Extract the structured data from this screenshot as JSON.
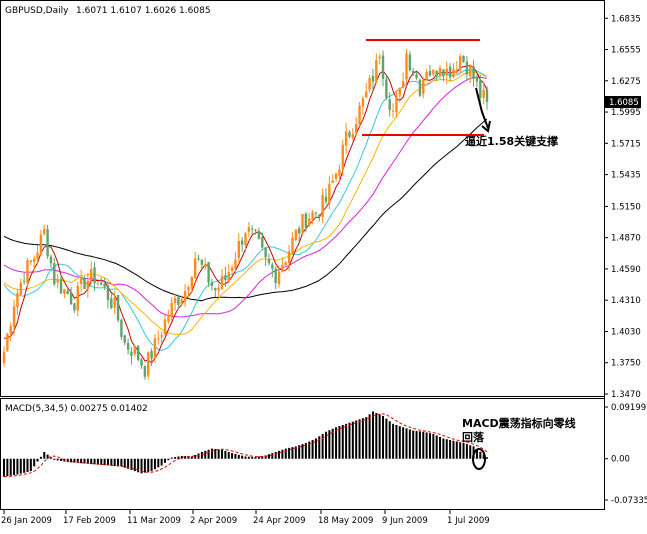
{
  "header": {
    "symbol_label": "GBPUSD,Daily",
    "ohlc_label": "1.6071 1.6107 1.6026 1.6085"
  },
  "colors": {
    "candle_up": "#ff8c1a",
    "candle_down": "#5fa36a",
    "ma_fast": "#cc0000",
    "ma_orange": "#ffb400",
    "ma_cyan": "#34c8e0",
    "ma_magenta": "#dd20dd",
    "ma_black": "#000000",
    "resistance": "#ee0000",
    "price_badge_bg": "#000000",
    "macd_hist": "#000000",
    "macd_signal": "#ee0000"
  },
  "annotations": {
    "support_note": "逼近1.58关键支撑",
    "macd_note_line1": "MACD震荡指标向零线",
    "macd_note_line2": "回落"
  },
  "macd_panel": {
    "label": "MACD(5,34,5) 0.00275 0.01402"
  },
  "chart_data": [
    {
      "type": "candlestick",
      "title": "GBPUSD,Daily",
      "ylim": [
        1.347,
        1.69
      ],
      "y_ticks": [
        "1.6835",
        "1.6555",
        "1.6275",
        "1.5995",
        "1.5715",
        "1.5435",
        "1.5150",
        "1.4870",
        "1.4590",
        "1.4310",
        "1.4030",
        "1.3750",
        "1.3470"
      ],
      "x_ticks": [
        "26 Jan 2009",
        "17 Feb 2009",
        "11 Mar 2009",
        "2 Apr 2009",
        "24 Apr 2009",
        "18 May 2009",
        "9 Jun 2009",
        "1 Jul 2009"
      ],
      "current_price": "1.6085",
      "resistance_level": 1.664,
      "support_level": 1.579,
      "close_anchors": [
        [
          0,
          1.385
        ],
        [
          3,
          1.43
        ],
        [
          6,
          1.455
        ],
        [
          9,
          1.47
        ],
        [
          12,
          1.492
        ],
        [
          15,
          1.45
        ],
        [
          18,
          1.44
        ],
        [
          21,
          1.43
        ],
        [
          24,
          1.448
        ],
        [
          27,
          1.452
        ],
        [
          30,
          1.44
        ],
        [
          33,
          1.425
        ],
        [
          36,
          1.392
        ],
        [
          39,
          1.385
        ],
        [
          42,
          1.37
        ],
        [
          45,
          1.39
        ],
        [
          48,
          1.412
        ],
        [
          51,
          1.43
        ],
        [
          54,
          1.44
        ],
        [
          57,
          1.47
        ],
        [
          60,
          1.455
        ],
        [
          63,
          1.44
        ],
        [
          66,
          1.45
        ],
        [
          69,
          1.472
        ],
        [
          72,
          1.495
        ],
        [
          75,
          1.485
        ],
        [
          78,
          1.465
        ],
        [
          81,
          1.455
        ],
        [
          84,
          1.47
        ],
        [
          87,
          1.49
        ],
        [
          90,
          1.505
        ],
        [
          93,
          1.51
        ],
        [
          96,
          1.52
        ],
        [
          99,
          1.545
        ],
        [
          102,
          1.575
        ],
        [
          105,
          1.595
        ],
        [
          108,
          1.615
        ],
        [
          111,
          1.64
        ],
        [
          112,
          1.655
        ],
        [
          114,
          1.62
        ],
        [
          116,
          1.6
        ],
        [
          118,
          1.615
        ],
        [
          120,
          1.652
        ],
        [
          122,
          1.638
        ],
        [
          124,
          1.622
        ],
        [
          126,
          1.64
        ],
        [
          128,
          1.632
        ],
        [
          130,
          1.645
        ],
        [
          132,
          1.636
        ],
        [
          134,
          1.64
        ],
        [
          136,
          1.65
        ],
        [
          138,
          1.642
        ],
        [
          140,
          1.63
        ],
        [
          142,
          1.615
        ],
        [
          144,
          1.6085
        ]
      ],
      "moving_averages": [
        "fast",
        "orange",
        "cyan",
        "magenta",
        "black"
      ]
    },
    {
      "type": "bar",
      "title": "MACD(5,34,5) 0.00275 0.01402",
      "ylim": [
        -0.07335,
        0.09199
      ],
      "y_ticks": [
        "0.09199",
        "0.00",
        "-0.07335"
      ],
      "macd_anchors": [
        [
          0,
          -0.032
        ],
        [
          4,
          -0.028
        ],
        [
          8,
          -0.022
        ],
        [
          12,
          0.012
        ],
        [
          15,
          -0.002
        ],
        [
          19,
          -0.006
        ],
        [
          23,
          -0.008
        ],
        [
          27,
          -0.01
        ],
        [
          31,
          -0.012
        ],
        [
          35,
          -0.014
        ],
        [
          38,
          -0.02
        ],
        [
          41,
          -0.026
        ],
        [
          44,
          -0.022
        ],
        [
          47,
          -0.012
        ],
        [
          50,
          0.002
        ],
        [
          53,
          0.005
        ],
        [
          56,
          0.004
        ],
        [
          59,
          0.012
        ],
        [
          62,
          0.018
        ],
        [
          65,
          0.016
        ],
        [
          68,
          0.01
        ],
        [
          72,
          0.004
        ],
        [
          75,
          0.003
        ],
        [
          78,
          0.006
        ],
        [
          81,
          0.012
        ],
        [
          84,
          0.018
        ],
        [
          87,
          0.022
        ],
        [
          90,
          0.028
        ],
        [
          93,
          0.036
        ],
        [
          96,
          0.048
        ],
        [
          99,
          0.056
        ],
        [
          102,
          0.062
        ],
        [
          105,
          0.068
        ],
        [
          108,
          0.074
        ],
        [
          110,
          0.084
        ],
        [
          113,
          0.076
        ],
        [
          116,
          0.062
        ],
        [
          119,
          0.056
        ],
        [
          122,
          0.05
        ],
        [
          125,
          0.048
        ],
        [
          128,
          0.044
        ],
        [
          131,
          0.036
        ],
        [
          134,
          0.032
        ],
        [
          137,
          0.028
        ],
        [
          140,
          0.022
        ],
        [
          144,
          0.00275
        ]
      ],
      "signal_value": 0.01402
    }
  ]
}
